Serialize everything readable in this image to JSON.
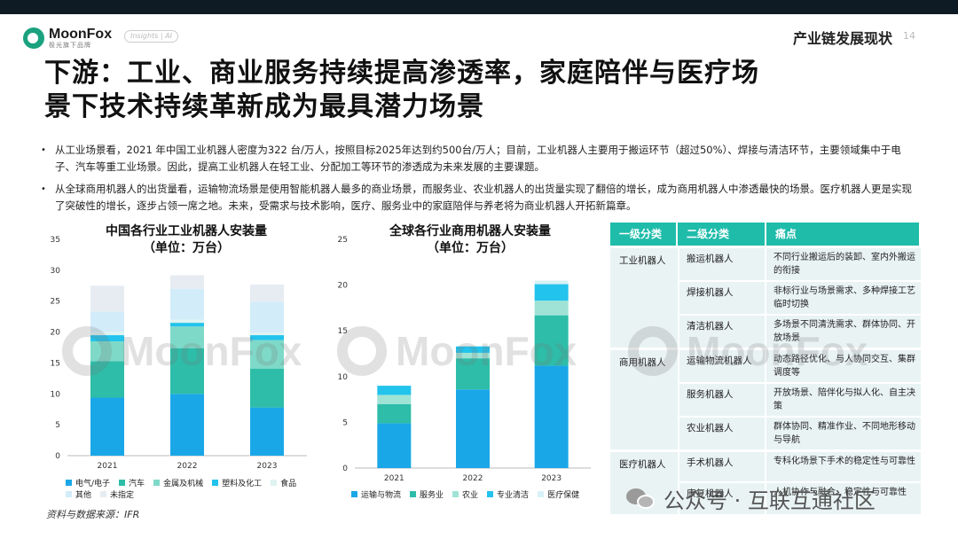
{
  "header": {
    "logo_name": "MoonFox",
    "logo_sub": "极光旗下品牌",
    "logo_pill": "Insights | AI",
    "section_title": "产业链发展现状",
    "page_number": "14"
  },
  "headline": {
    "line1": "下游：工业、商业服务持续提高渗透率，家庭陪伴与医疗场",
    "line2": "景下技术持续革新成为最具潜力场景"
  },
  "bullets": [
    "从工业场景看，2021 年中国工业机器人密度为322 台/万人，按照目标2025年达到约500台/万人；目前，工业机器人主要用于搬运环节（超过50%）、焊接与清洁环节，主要领域集中于电子、汽车等重工业场景。因此，提高工业机器人在轻工业、分配加工等环节的渗透成为未来发展的主要课题。",
    "从全球商用机器人的出货量看，运输物流场景是使用智能机器人最多的商业场景，而服务业、农业机器人的出货量实现了翻倍的增长，成为商用机器人中渗透最快的场景。医疗机器人更是实现了突破性的增长，逐步占领一席之地。未来，受需求与技术影响，医疗、服务业中的家庭陪伴与养老将为商业机器人开拓新篇章。"
  ],
  "chart_data": [
    {
      "type": "bar",
      "stacked": true,
      "title": "中国各行业工业机器人安装量",
      "subtitle": "（单位：万台）",
      "categories": [
        "2021",
        "2022",
        "2023"
      ],
      "ylim": [
        0,
        35
      ],
      "yticks": [
        0,
        5,
        10,
        15,
        20,
        25,
        30,
        35
      ],
      "series": [
        {
          "name": "电气/电子",
          "color": "#1aa7e8",
          "values": [
            9.4,
            10.0,
            7.8
          ]
        },
        {
          "name": "汽车",
          "color": "#2dbda8",
          "values": [
            5.9,
            7.4,
            6.3
          ]
        },
        {
          "name": "金属及机械",
          "color": "#7fd9c8",
          "values": [
            3.2,
            3.5,
            4.6
          ]
        },
        {
          "name": "塑料及化工",
          "color": "#22c3ec",
          "values": [
            1.0,
            0.6,
            0.8
          ]
        },
        {
          "name": "食品",
          "color": "#dff3f1",
          "values": [
            0.5,
            0.5,
            0.4
          ]
        },
        {
          "name": "其他",
          "color": "#d2ecf9",
          "values": [
            3.3,
            5.0,
            5.0
          ]
        },
        {
          "name": "未指定",
          "color": "#e6ecf2",
          "values": [
            4.2,
            2.2,
            2.8
          ]
        }
      ]
    },
    {
      "type": "bar",
      "stacked": true,
      "title": "全球各行业商用机器人安装量",
      "subtitle": "（单位：万台）",
      "categories": [
        "2021",
        "2022",
        "2023"
      ],
      "ylim": [
        0,
        25
      ],
      "yticks": [
        0,
        5,
        10,
        15,
        20,
        25
      ],
      "series": [
        {
          "name": "运输与物流",
          "color": "#1aa7e8",
          "values": [
            4.9,
            8.6,
            11.2
          ]
        },
        {
          "name": "服务业",
          "color": "#2dbda8",
          "values": [
            2.1,
            3.4,
            5.5
          ]
        },
        {
          "name": "农业",
          "color": "#9fe3d6",
          "values": [
            1.0,
            0.6,
            1.6
          ]
        },
        {
          "name": "专业清洁",
          "color": "#22c3ec",
          "values": [
            1.0,
            0.7,
            1.8
          ]
        },
        {
          "name": "医疗保健",
          "color": "#d8f1f6",
          "values": [
            0.0,
            0.0,
            0.4
          ]
        }
      ]
    }
  ],
  "source": "资料与数据来源：IFR",
  "table": {
    "headers": [
      "一级分类",
      "二级分类",
      "痛点"
    ],
    "groups": [
      {
        "level1": "工业机器人",
        "rows": [
          {
            "level2": "搬运机器人",
            "pain": "不同行业搬运后的装卸、室内外搬运的衔接"
          },
          {
            "level2": "焊接机器人",
            "pain": "非标行业与场景需求、多种焊接工艺临时切换"
          },
          {
            "level2": "清洁机器人",
            "pain": "多场景不同清洗需求、群体协同、开放场景"
          }
        ]
      },
      {
        "level1": "商用机器人",
        "rows": [
          {
            "level2": "运输物流机器人",
            "pain": "动态路径优化、与人协同交互、集群调度等"
          },
          {
            "level2": "服务机器人",
            "pain": "开放场景、陪伴化与拟人化、自主决策"
          },
          {
            "level2": "农业机器人",
            "pain": "群体协同、精准作业、不同地形移动与导航"
          }
        ]
      },
      {
        "level1": "医疗机器人",
        "rows": [
          {
            "level2": "手术机器人",
            "pain": "专科化场景下手术的稳定性与可靠性"
          },
          {
            "level2": "康复机器人",
            "pain": "人机协作与融合、稳定性与可靠性"
          }
        ]
      }
    ]
  },
  "watermark": "MoonFox",
  "wechat": "公众号 · 互联互通社区"
}
